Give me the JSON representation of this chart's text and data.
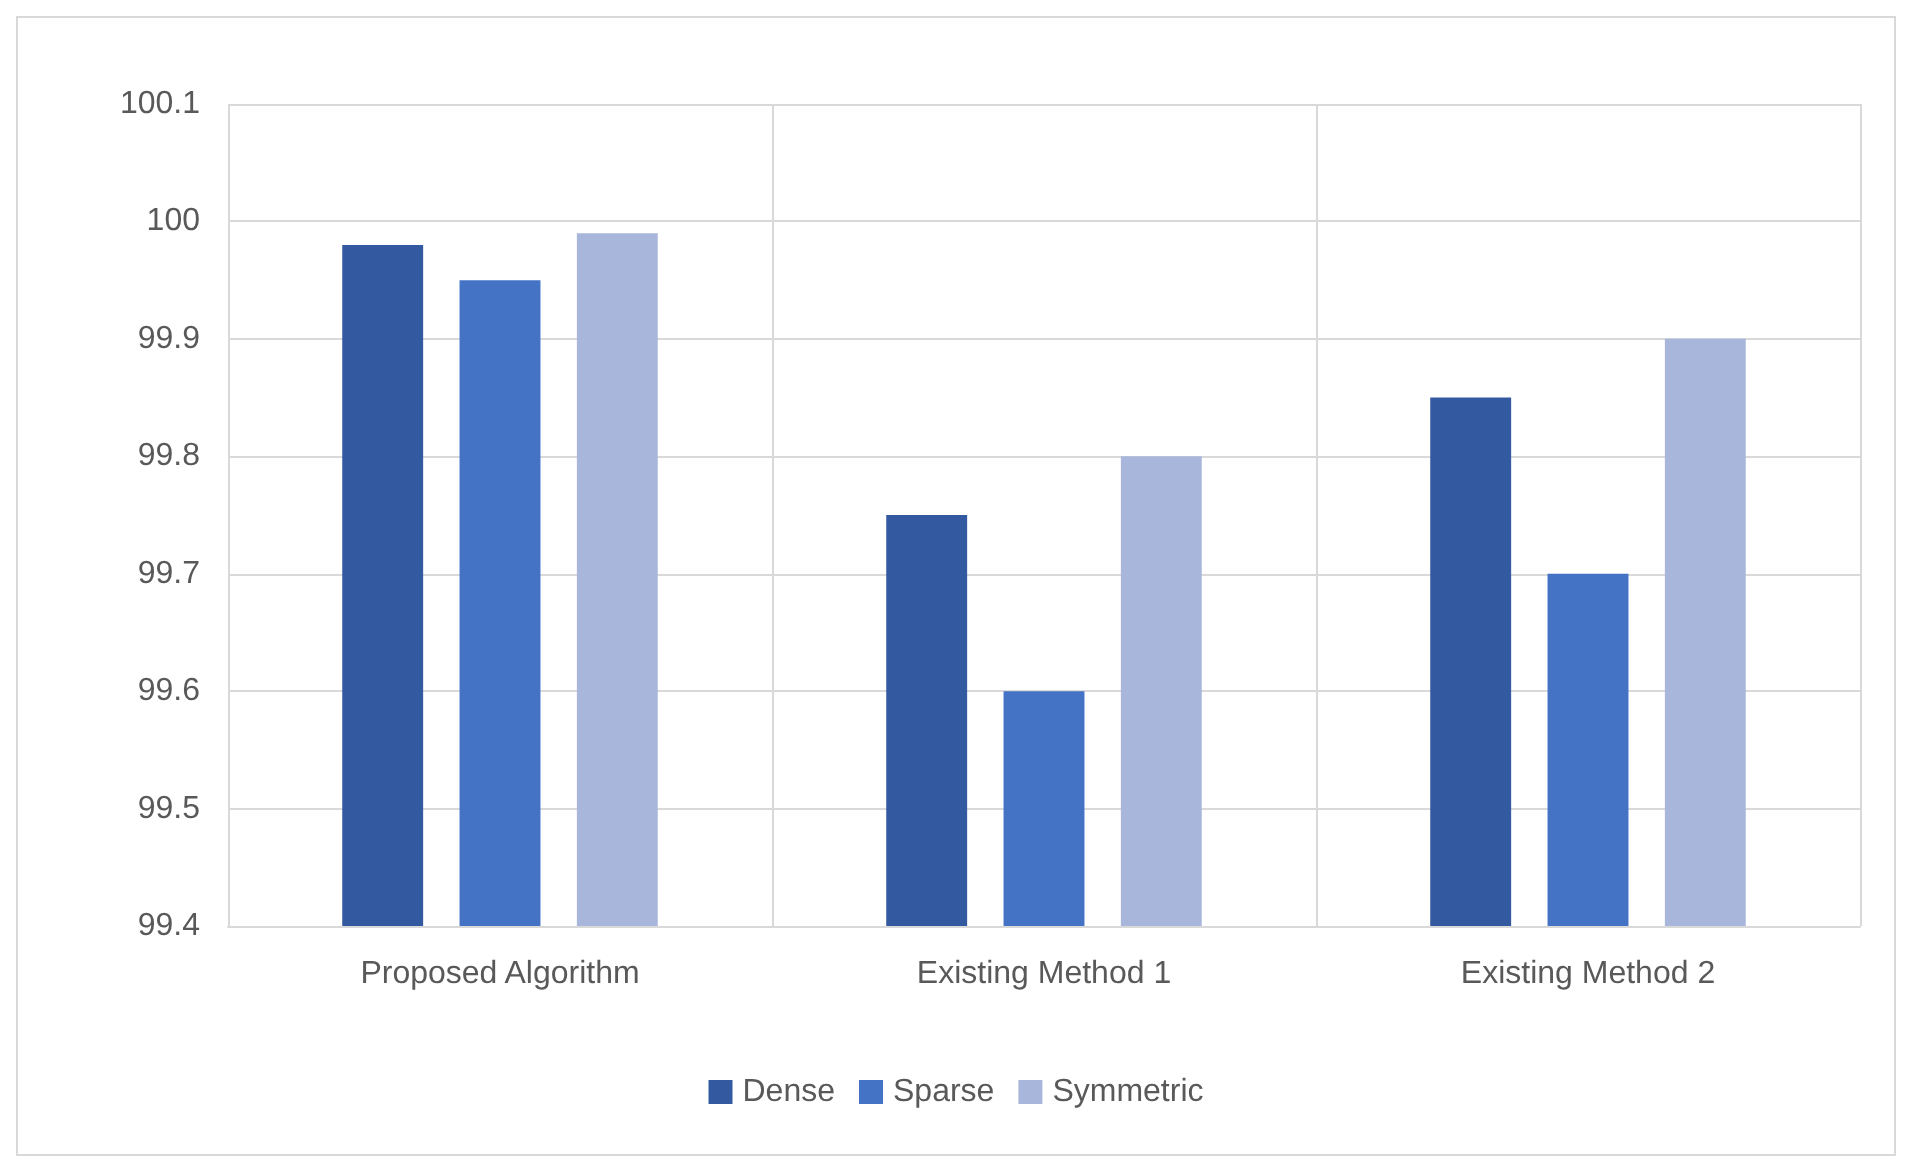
{
  "chart_data": {
    "type": "bar",
    "categories": [
      "Proposed Algorithm",
      "Existing Method 1",
      "Existing Method 2"
    ],
    "series": [
      {
        "name": "Dense",
        "color": "#335aa1",
        "values": [
          99.98,
          99.75,
          99.85
        ]
      },
      {
        "name": "Sparse",
        "color": "#4472c4",
        "values": [
          99.95,
          99.6,
          99.7
        ]
      },
      {
        "name": "Symmetric",
        "color": "#a9b6db",
        "values": [
          99.99,
          99.8,
          99.9
        ]
      }
    ],
    "ylim": [
      99.4,
      100.1
    ],
    "yticks": [
      99.4,
      99.5,
      99.6,
      99.7,
      99.8,
      99.9,
      100,
      100.1
    ],
    "grid": true,
    "legend": "bottom"
  }
}
